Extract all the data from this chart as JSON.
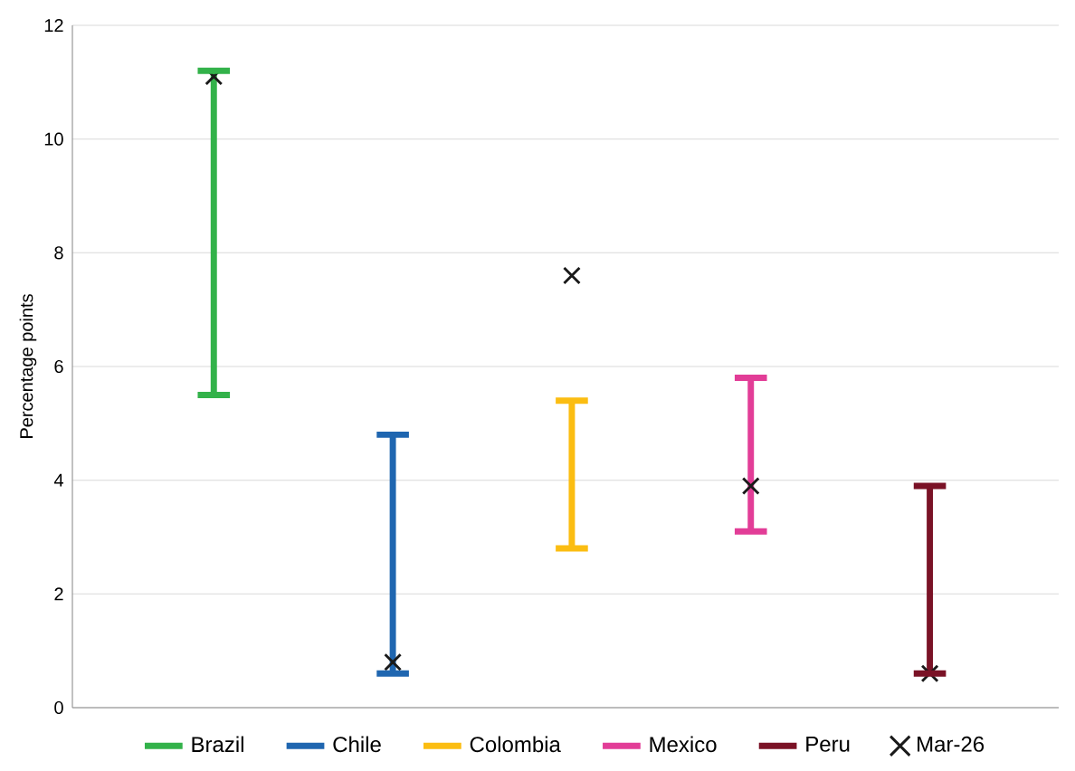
{
  "chart_data": {
    "type": "bar",
    "ylabel": "Percentage points",
    "categories": [
      null,
      null,
      null,
      null,
      null
    ],
    "ylim": [
      0,
      12
    ],
    "yticks": [
      0,
      2,
      4,
      6,
      8,
      10,
      12
    ],
    "grid": "y",
    "legend": "bottom",
    "series": [
      {
        "name": "Brazil",
        "color": "#33b24a",
        "base": [
          5.5,
          null,
          null,
          null,
          null
        ],
        "values": [
          5.7,
          null,
          null,
          null,
          null
        ]
      },
      {
        "name": "Chile",
        "color": "#1f66b0",
        "base": [
          null,
          0.6,
          null,
          null,
          null
        ],
        "values": [
          null,
          4.2,
          null,
          null,
          null
        ]
      },
      {
        "name": "Colombia",
        "color": "#fbbd12",
        "base": [
          null,
          null,
          2.8,
          null,
          null
        ],
        "values": [
          null,
          null,
          2.6,
          null,
          null
        ]
      },
      {
        "name": "Mexico",
        "color": "#e23d97",
        "base": [
          null,
          null,
          null,
          3.1,
          null
        ],
        "values": [
          null,
          null,
          null,
          2.7,
          null
        ]
      },
      {
        "name": "Peru",
        "color": "#7a1226",
        "base": [
          null,
          null,
          null,
          null,
          0.6
        ],
        "values": [
          null,
          null,
          null,
          null,
          3.3
        ]
      },
      {
        "name": "Mar-26",
        "type": "scatter",
        "marker": "cross",
        "color": "#1a1a1a",
        "values": [
          11.1,
          0.8,
          7.6,
          3.9,
          0.6
        ]
      }
    ]
  }
}
